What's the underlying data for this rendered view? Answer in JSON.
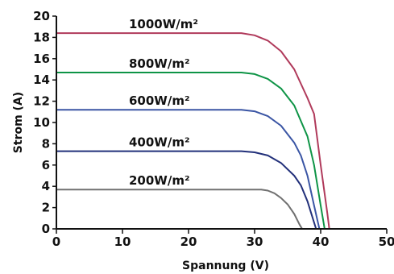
{
  "chart_data": {
    "type": "line",
    "xlabel": "Spannung (V)",
    "ylabel": "Strom (A)",
    "xlim": [
      0,
      50
    ],
    "ylim": [
      0,
      20
    ],
    "x_ticks": [
      "0",
      "10",
      "20",
      "30",
      "40",
      "50"
    ],
    "y_ticks": [
      "0",
      "2",
      "4",
      "6",
      "8",
      "10",
      "12",
      "14",
      "16",
      "18",
      "20"
    ],
    "grid": false,
    "series": [
      {
        "name": "1000W/m²",
        "color": "#b03a5b",
        "points": [
          [
            0,
            18.4
          ],
          [
            28,
            18.4
          ],
          [
            30,
            18.2
          ],
          [
            32,
            17.7
          ],
          [
            34,
            16.7
          ],
          [
            36,
            15.0
          ],
          [
            38,
            12.3
          ],
          [
            39,
            10.8
          ],
          [
            40,
            6.0
          ],
          [
            41,
            1.5
          ],
          [
            41.3,
            0
          ]
        ]
      },
      {
        "name": "800W/m²",
        "color": "#0e9446",
        "points": [
          [
            0,
            14.7
          ],
          [
            28,
            14.7
          ],
          [
            30,
            14.55
          ],
          [
            32,
            14.1
          ],
          [
            34,
            13.2
          ],
          [
            36,
            11.6
          ],
          [
            38,
            8.7
          ],
          [
            39,
            6.0
          ],
          [
            40,
            2.2
          ],
          [
            40.6,
            0
          ]
        ]
      },
      {
        "name": "600W/m²",
        "color": "#3a55a4",
        "points": [
          [
            0,
            11.2
          ],
          [
            28,
            11.2
          ],
          [
            30,
            11.05
          ],
          [
            32,
            10.6
          ],
          [
            34,
            9.7
          ],
          [
            36,
            8.1
          ],
          [
            37,
            6.9
          ],
          [
            38,
            5.0
          ],
          [
            39,
            2.2
          ],
          [
            39.8,
            0
          ]
        ]
      },
      {
        "name": "400W/m²",
        "color": "#22307a",
        "points": [
          [
            0,
            7.3
          ],
          [
            28,
            7.3
          ],
          [
            30,
            7.2
          ],
          [
            32,
            6.9
          ],
          [
            34,
            6.2
          ],
          [
            36,
            5.0
          ],
          [
            37,
            4.1
          ],
          [
            38,
            2.6
          ],
          [
            39,
            0.6
          ],
          [
            39.3,
            0
          ]
        ]
      },
      {
        "name": "200W/m²",
        "color": "#707070",
        "points": [
          [
            0,
            3.7
          ],
          [
            31,
            3.7
          ],
          [
            32,
            3.6
          ],
          [
            33,
            3.35
          ],
          [
            34,
            2.9
          ],
          [
            35,
            2.3
          ],
          [
            36,
            1.4
          ],
          [
            36.8,
            0.4
          ],
          [
            37.2,
            0
          ]
        ]
      }
    ]
  }
}
